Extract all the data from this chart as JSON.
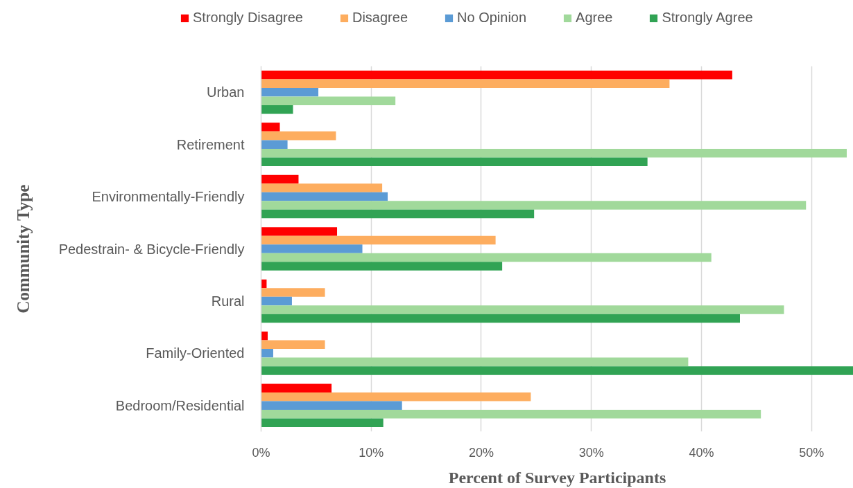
{
  "chart_data": {
    "type": "bar",
    "orientation": "horizontal",
    "xlabel": "Percent of Survey Participants",
    "ylabel": "Community Type",
    "categories": [
      "Urban",
      "Retirement",
      "Environmentally-Friendly",
      "Pedestrain- & Bicycle-Friendly",
      "Rural",
      "Family-Oriented",
      "Bedroom/Residential"
    ],
    "series": [
      {
        "name": "Strongly Disagree",
        "color": "#ff0000",
        "values": [
          42.8,
          1.7,
          3.4,
          6.9,
          0.5,
          0.6,
          6.4
        ]
      },
      {
        "name": "Disagree",
        "color": "#fdad5f",
        "values": [
          37.1,
          6.8,
          11.0,
          21.3,
          5.8,
          5.8,
          24.5
        ]
      },
      {
        "name": "No Opinion",
        "color": "#5b9bd5",
        "values": [
          5.2,
          2.4,
          11.5,
          9.2,
          2.8,
          1.1,
          12.8
        ]
      },
      {
        "name": "Agree",
        "color": "#a1d99b",
        "values": [
          12.2,
          53.2,
          49.5,
          40.9,
          47.5,
          38.8,
          45.4
        ]
      },
      {
        "name": "Strongly Agree",
        "color": "#31a354",
        "values": [
          2.9,
          35.1,
          24.8,
          21.9,
          43.5,
          53.8,
          11.1
        ]
      }
    ],
    "xlim": [
      0,
      53.8
    ],
    "xticks": [
      {
        "value": 0,
        "label": "0%"
      },
      {
        "value": 10,
        "label": "10%"
      },
      {
        "value": 20,
        "label": "20%"
      },
      {
        "value": 30,
        "label": "30%"
      },
      {
        "value": 40,
        "label": "40%"
      },
      {
        "value": 50,
        "label": "50%"
      }
    ],
    "grid": "x",
    "legend": "top"
  }
}
